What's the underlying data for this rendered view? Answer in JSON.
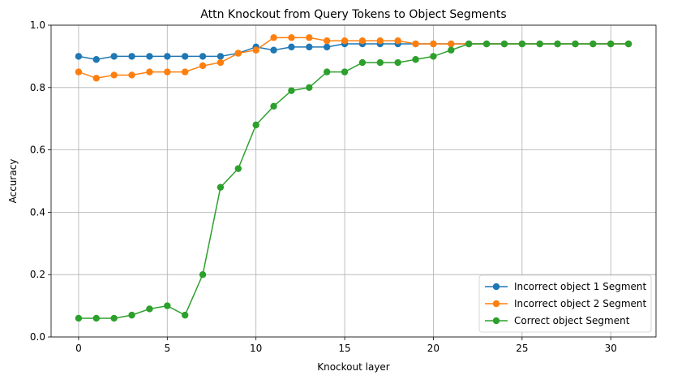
{
  "chart_data": {
    "type": "line",
    "title": "Attn Knockout from Query Tokens to Object Segments",
    "xlabel": "Knockout layer",
    "ylabel": "Accuracy",
    "xlim": [
      -1.55,
      32.55
    ],
    "ylim": [
      0.0,
      1.0
    ],
    "xticks": [
      0,
      5,
      10,
      15,
      20,
      25,
      30
    ],
    "yticks": [
      0.0,
      0.2,
      0.4,
      0.6,
      0.8,
      1.0
    ],
    "xtick_labels": [
      "0",
      "5",
      "10",
      "15",
      "20",
      "25",
      "30"
    ],
    "ytick_labels": [
      "0.0",
      "0.2",
      "0.4",
      "0.6",
      "0.8",
      "1.0"
    ],
    "grid": true,
    "legend_position": "lower-right",
    "x": [
      0,
      1,
      2,
      3,
      4,
      5,
      6,
      7,
      8,
      9,
      10,
      11,
      12,
      13,
      14,
      15,
      16,
      17,
      18,
      19,
      20,
      21,
      22,
      23,
      24,
      25,
      26,
      27,
      28,
      29,
      30,
      31
    ],
    "series": [
      {
        "name": "Incorrect object 1 Segment",
        "color": "#1f77b4",
        "values": [
          0.9,
          0.89,
          0.9,
          0.9,
          0.9,
          0.9,
          0.9,
          0.9,
          0.9,
          0.91,
          0.93,
          0.92,
          0.93,
          0.93,
          0.93,
          0.94,
          0.94,
          0.94,
          0.94,
          0.94,
          0.94,
          0.94,
          0.94,
          0.94,
          0.94,
          0.94,
          0.94,
          0.94,
          0.94,
          0.94,
          0.94,
          0.94
        ]
      },
      {
        "name": "Incorrect object 2 Segment",
        "color": "#ff7f0e",
        "values": [
          0.85,
          0.83,
          0.84,
          0.84,
          0.85,
          0.85,
          0.85,
          0.87,
          0.88,
          0.91,
          0.92,
          0.96,
          0.96,
          0.96,
          0.95,
          0.95,
          0.95,
          0.95,
          0.95,
          0.94,
          0.94,
          0.94,
          0.94,
          0.94,
          0.94,
          0.94,
          0.94,
          0.94,
          0.94,
          0.94,
          0.94,
          0.94
        ]
      },
      {
        "name": "Correct object Segment",
        "color": "#2ca02c",
        "values": [
          0.06,
          0.06,
          0.06,
          0.07,
          0.09,
          0.1,
          0.07,
          0.2,
          0.48,
          0.54,
          0.68,
          0.74,
          0.79,
          0.8,
          0.85,
          0.85,
          0.88,
          0.88,
          0.88,
          0.89,
          0.9,
          0.92,
          0.94,
          0.94,
          0.94,
          0.94,
          0.94,
          0.94,
          0.94,
          0.94,
          0.94,
          0.94
        ]
      }
    ]
  }
}
